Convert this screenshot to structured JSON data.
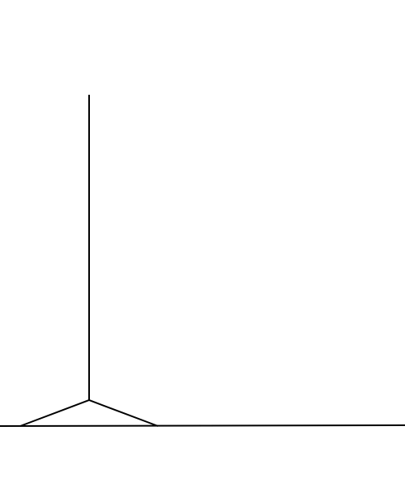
{
  "diagram": {
    "background_color": "#ffffff",
    "line_color": "#000000",
    "elements": [
      "baseline",
      "vertical-pole",
      "triangular-base"
    ]
  }
}
